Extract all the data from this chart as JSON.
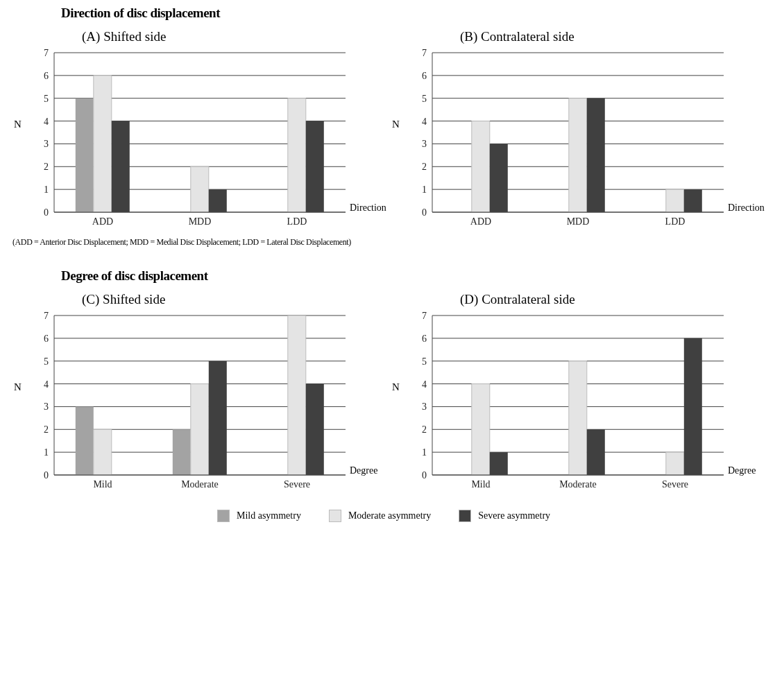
{
  "chart_data": [
    {
      "type": "bar",
      "title": "Direction of disc displacement",
      "subtitle": "(A) Shifted side",
      "xlabel": "Direction",
      "ylabel": "N",
      "categories": [
        "ADD",
        "MDD",
        "LDD"
      ],
      "series": [
        {
          "name": "Mild asymmetry",
          "color": "#a3a3a3",
          "values": [
            5,
            0,
            0
          ]
        },
        {
          "name": "Moderate asymmetry",
          "color": "#e4e4e4",
          "values": [
            6,
            2,
            5
          ]
        },
        {
          "name": "Severe asymmetry",
          "color": "#404040",
          "values": [
            4,
            1,
            4
          ]
        }
      ],
      "ylim": [
        0,
        7
      ],
      "yticks": [
        0,
        1,
        2,
        3,
        4,
        5,
        6,
        7
      ],
      "grid": "y",
      "legend": "bottom",
      "annotations": [
        "(ADD = Anterior Disc Displacement; MDD = Medial Disc Displacement; LDD = Lateral Disc Displacement)"
      ]
    },
    {
      "type": "bar",
      "subtitle": "(B) Contralateral side",
      "xlabel": "Direction",
      "ylabel": "N",
      "categories": [
        "ADD",
        "MDD",
        "LDD"
      ],
      "series": [
        {
          "color": "#a3a3a3",
          "values": [
            0,
            0,
            0
          ]
        },
        {
          "color": "#e4e4e4",
          "values": [
            4,
            5,
            1
          ]
        },
        {
          "color": "#404040",
          "values": [
            3,
            5,
            1
          ]
        }
      ],
      "ylim": [
        0,
        7
      ],
      "yticks": [
        0,
        1,
        2,
        3,
        4,
        5,
        6,
        7
      ],
      "grid": "y"
    },
    {
      "type": "bar",
      "title": "Degree of disc displacement",
      "subtitle": "(C) Shifted side",
      "xlabel": "Degree",
      "ylabel": "N",
      "categories": [
        "Mild",
        "Moderate",
        "Severe"
      ],
      "series": [
        {
          "color": "#a3a3a3",
          "values": [
            3,
            2,
            0
          ]
        },
        {
          "color": "#e4e4e4",
          "values": [
            2,
            4,
            7
          ]
        },
        {
          "color": "#404040",
          "values": [
            0,
            5,
            4
          ]
        }
      ],
      "ylim": [
        0,
        7
      ],
      "yticks": [
        0,
        1,
        2,
        3,
        4,
        5,
        6,
        7
      ],
      "grid": "y"
    },
    {
      "type": "bar",
      "subtitle": "(D) Contralateral side",
      "xlabel": "Degree",
      "ylabel": "N",
      "categories": [
        "Mild",
        "Moderate",
        "Severe"
      ],
      "series": [
        {
          "color": "#a3a3a3",
          "values": [
            0,
            0,
            0
          ]
        },
        {
          "color": "#e4e4e4",
          "values": [
            4,
            5,
            1
          ]
        },
        {
          "color": "#404040",
          "values": [
            1,
            2,
            6
          ]
        }
      ],
      "ylim": [
        0,
        7
      ],
      "yticks": [
        0,
        1,
        2,
        3,
        4,
        5,
        6,
        7
      ],
      "grid": "y"
    }
  ]
}
